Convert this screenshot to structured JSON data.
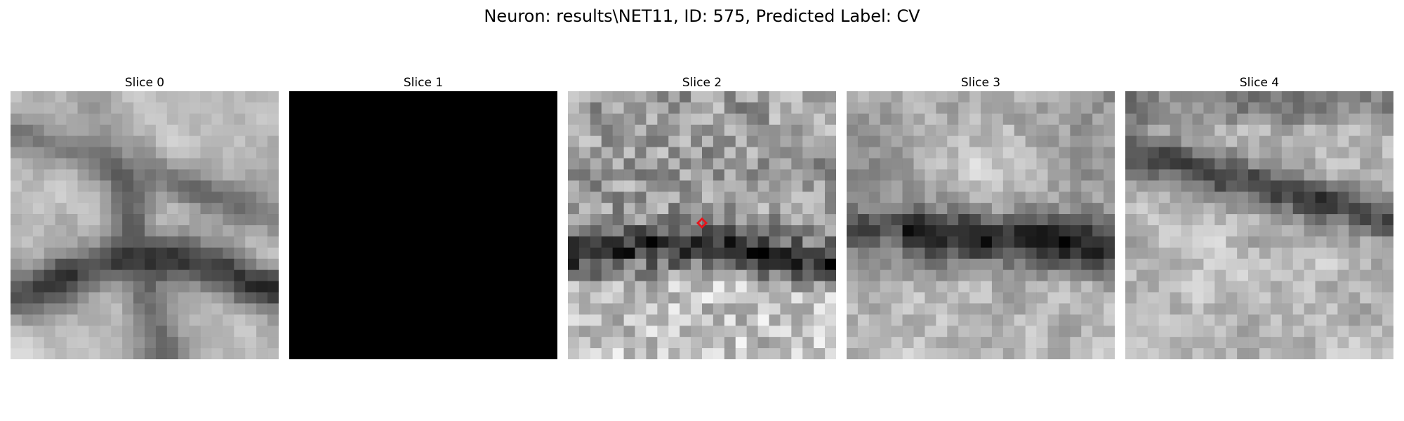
{
  "figure": {
    "title": "Neuron: results\\NET11, ID: 575, Predicted Label: CV"
  },
  "panels": [
    {
      "title": "Slice 0",
      "content": "grayscale microscopy patch",
      "seed": 11,
      "smooth": 2,
      "pattern": "branches"
    },
    {
      "title": "Slice 1",
      "content": "blank (all black)",
      "seed": 0,
      "smooth": 0,
      "pattern": "black"
    },
    {
      "title": "Slice 2",
      "content": "grayscale microscopy patch with marker",
      "seed": 23,
      "smooth": 0,
      "pattern": "band-low",
      "marker": {
        "shape": "diamond",
        "color": "#e8141c"
      }
    },
    {
      "title": "Slice 3",
      "content": "grayscale microscopy patch",
      "seed": 37,
      "smooth": 1,
      "pattern": "band-mid"
    },
    {
      "title": "Slice 4",
      "content": "grayscale microscopy patch",
      "seed": 53,
      "smooth": 1,
      "pattern": "band-high"
    }
  ],
  "colors": {
    "background": "#ffffff",
    "marker": "#e8141c"
  }
}
